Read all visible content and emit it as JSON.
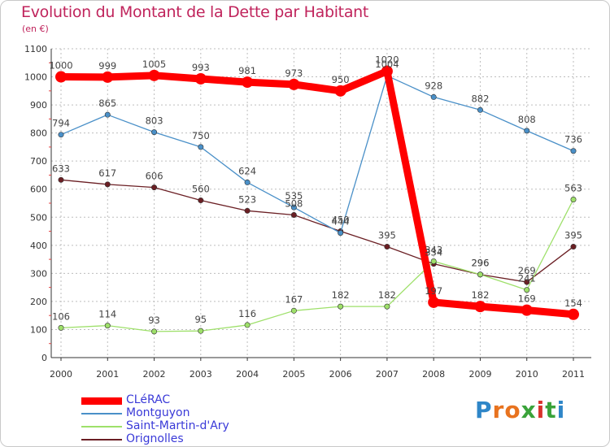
{
  "title": "Evolution du Montant de la Dette par Habitant",
  "subtitle": "(en €)",
  "logo": {
    "letters": [
      "P",
      "r",
      "o",
      "x",
      "i",
      "t",
      "i"
    ],
    "colors": [
      "#2e86c8",
      "#e8731f",
      "#e8731f",
      "#3aa33a",
      "#d8332c",
      "#3aa33a",
      "#2e86c8"
    ]
  },
  "chart_data": {
    "type": "line",
    "x": [
      "2000",
      "2001",
      "2002",
      "2003",
      "2004",
      "2005",
      "2006",
      "2007",
      "2008",
      "2009",
      "2010",
      "2011"
    ],
    "ylim": [
      0,
      1100
    ],
    "yticks": [
      0,
      100,
      200,
      300,
      400,
      500,
      600,
      700,
      800,
      900,
      1000,
      1100
    ],
    "grid": true,
    "legend_position": "bottom-left",
    "series": [
      {
        "name": "CLéRAC",
        "color": "#ff0000",
        "values": [
          1000,
          999,
          1005,
          993,
          981,
          973,
          950,
          1020,
          197,
          182,
          169,
          154
        ]
      },
      {
        "name": "Montguyon",
        "color": "#4a90c8",
        "values": [
          794,
          865,
          803,
          750,
          624,
          535,
          444,
          1004,
          928,
          882,
          808,
          736
        ]
      },
      {
        "name": "Saint-Martin-d'Ary",
        "color": "#9ee06a",
        "values": [
          106,
          114,
          93,
          95,
          116,
          167,
          182,
          182,
          343,
          296,
          241,
          563
        ]
      },
      {
        "name": "Orignolles",
        "color": "#6b1f24",
        "values": [
          633,
          617,
          606,
          560,
          523,
          508,
          450,
          395,
          334,
          296,
          269,
          395
        ]
      }
    ]
  }
}
